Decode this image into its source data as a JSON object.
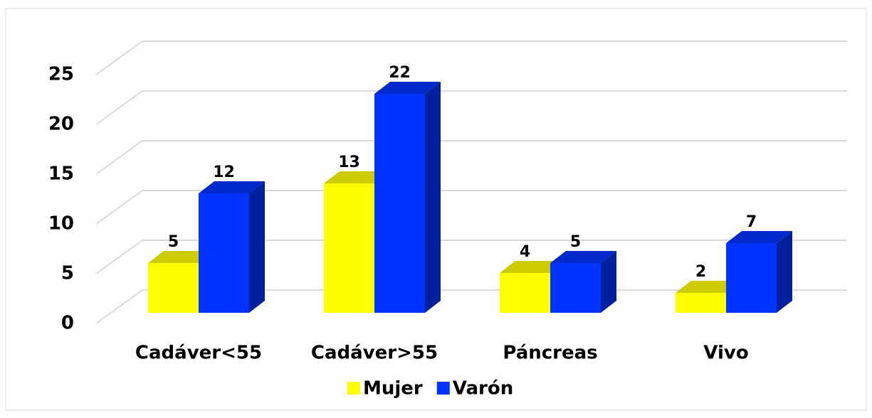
{
  "chart_data": {
    "type": "bar3d",
    "categories": [
      "Cadáver<55",
      "Cadáver>55",
      "Páncreas",
      "Vivo"
    ],
    "series": [
      {
        "name": "Mujer",
        "color": "#ffff00",
        "values": [
          5,
          13,
          4,
          2
        ]
      },
      {
        "name": "Varón",
        "color": "#0033ff",
        "values": [
          12,
          22,
          5,
          7
        ]
      }
    ],
    "ylim": [
      0,
      25
    ],
    "yticks": [
      0,
      5,
      10,
      15,
      20,
      25
    ],
    "grid": true,
    "legend": "bottom"
  }
}
